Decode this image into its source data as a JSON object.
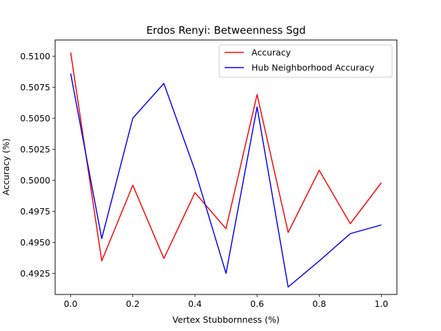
{
  "chart_data": {
    "type": "line",
    "title": "Erdos Renyi: Betweenness Sgd",
    "xlabel": "Vertex Stubbornness (%)",
    "ylabel": "Accuracy (%)",
    "xlim": [
      -0.05,
      1.05
    ],
    "ylim": [
      0.4908,
      0.5113
    ],
    "x": [
      0.0,
      0.1,
      0.2,
      0.3,
      0.4,
      0.5,
      0.6,
      0.7,
      0.8,
      0.9,
      1.0
    ],
    "xticks": [
      0.0,
      0.2,
      0.4,
      0.6,
      0.8,
      1.0
    ],
    "xtick_labels": [
      "0.0",
      "0.2",
      "0.4",
      "0.6",
      "0.8",
      "1.0"
    ],
    "yticks": [
      0.4925,
      0.495,
      0.4975,
      0.5,
      0.5025,
      0.505,
      0.5075,
      0.51
    ],
    "ytick_labels": [
      "0.4925",
      "0.4950",
      "0.4975",
      "0.5000",
      "0.5025",
      "0.5050",
      "0.5075",
      "0.5100"
    ],
    "legend_position": "top-right",
    "grid": false,
    "series": [
      {
        "name": "Accuracy",
        "color": "#ff0000",
        "values": [
          0.5103,
          0.4935,
          0.4996,
          0.4937,
          0.499,
          0.4961,
          0.5069,
          0.4958,
          0.5008,
          0.4965,
          0.4998
        ]
      },
      {
        "name": "Hub Neighborhood Accuracy",
        "color": "#0000ff",
        "values": [
          0.5086,
          0.4953,
          0.505,
          0.5078,
          0.5008,
          0.4925,
          0.5059,
          0.4914,
          0.4935,
          0.4957,
          0.4964
        ]
      }
    ]
  }
}
